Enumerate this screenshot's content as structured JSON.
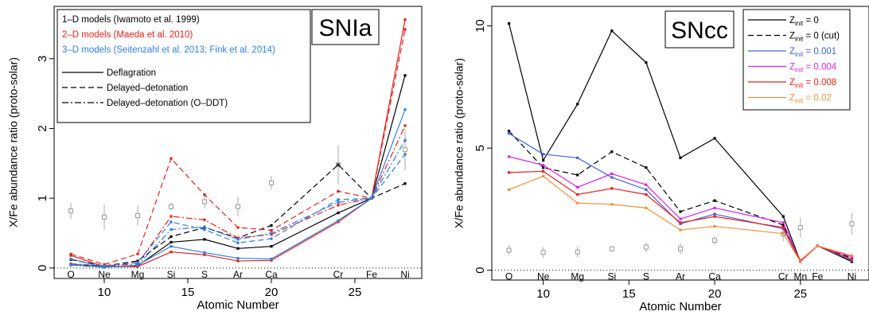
{
  "chart_data": [
    {
      "type": "line",
      "title": "SNIa",
      "xlabel": "Atomic Number",
      "ylabel": "X/Fe abundance ratio (proto-solar)",
      "xlim": [
        7,
        29
      ],
      "ylim": [
        -0.15,
        3.75
      ],
      "xticks": [
        10,
        15,
        20,
        25
      ],
      "yticks": [
        0,
        1,
        2,
        3
      ],
      "grid": false,
      "element_labels": [
        {
          "name": "O",
          "z": 8
        },
        {
          "name": "Ne",
          "z": 10
        },
        {
          "name": "Mg",
          "z": 12
        },
        {
          "name": "Si",
          "z": 14
        },
        {
          "name": "S",
          "z": 16
        },
        {
          "name": "Ar",
          "z": 18
        },
        {
          "name": "Ca",
          "z": 20
        },
        {
          "name": "Cr",
          "z": 24
        },
        {
          "name": "Fe",
          "z": 26
        },
        {
          "name": "Ni",
          "z": 28
        }
      ],
      "legend_placement": "top-left",
      "legend_groups": [
        {
          "label": "1–D models (Iwamoto et al. 1999)",
          "color": "#000000"
        },
        {
          "label": "2–D models (Maeda et al. 2010)",
          "color": "#e8201e"
        },
        {
          "label": "3–D models (Seitenzahl et al. 2013; Fink et al. 2014)",
          "color": "#2e7fe0"
        }
      ],
      "legend_styles": [
        {
          "label": "Deflagration",
          "dash": "solid"
        },
        {
          "label": "Delayed–detonation",
          "dash": "dashed"
        },
        {
          "label": "Delayed–detonation (O–DDT)",
          "dash": "dashdot"
        }
      ],
      "x": [
        8,
        10,
        12,
        14,
        16,
        18,
        20,
        24,
        26,
        28
      ],
      "series": [
        {
          "color": "#000000",
          "dash": "solid",
          "values": [
            0.05,
            0.02,
            0.03,
            0.37,
            0.41,
            0.28,
            0.31,
            0.79,
            1.0,
            2.76
          ]
        },
        {
          "color": "#000000",
          "dash": "dashed",
          "values": [
            0.12,
            0.03,
            0.1,
            0.45,
            0.58,
            0.43,
            0.61,
            1.48,
            1.0,
            1.21
          ]
        },
        {
          "color": "#e8201e",
          "dash": "solid",
          "values": [
            0.18,
            0.02,
            0.02,
            0.23,
            0.19,
            0.1,
            0.11,
            0.66,
            1.0,
            3.56
          ]
        },
        {
          "color": "#e8201e",
          "dash": "dashed",
          "values": [
            0.2,
            0.05,
            0.2,
            1.57,
            1.05,
            0.58,
            0.54,
            1.1,
            1.0,
            3.42
          ]
        },
        {
          "color": "#e8201e",
          "dash": "dashdot",
          "values": [
            0.06,
            0.03,
            0.06,
            0.74,
            0.69,
            0.43,
            0.48,
            0.9,
            1.0,
            2.04
          ]
        },
        {
          "color": "#2e7fe0",
          "dash": "solid",
          "values": [
            0.13,
            0.01,
            0.04,
            0.31,
            0.22,
            0.14,
            0.13,
            0.68,
            1.0,
            2.27
          ]
        },
        {
          "color": "#2e7fe0",
          "dash": "dashed",
          "values": [
            0.05,
            0.03,
            0.08,
            0.66,
            0.55,
            0.36,
            0.42,
            0.98,
            1.0,
            1.63
          ]
        },
        {
          "color": "#2e7fe0",
          "dash": "dashdot",
          "values": [
            0.04,
            0.01,
            0.04,
            0.55,
            0.59,
            0.41,
            0.5,
            0.94,
            1.0,
            1.83
          ]
        }
      ],
      "observations": [
        {
          "z": 8,
          "value": 0.82,
          "err": 0.12
        },
        {
          "z": 10,
          "value": 0.73,
          "err": 0.18
        },
        {
          "z": 12,
          "value": 0.75,
          "err": 0.14
        },
        {
          "z": 14,
          "value": 0.88,
          "err": 0.06
        },
        {
          "z": 16,
          "value": 0.95,
          "err": 0.1
        },
        {
          "z": 18,
          "value": 0.88,
          "err": 0.14
        },
        {
          "z": 20,
          "value": 1.22,
          "err": 0.1
        },
        {
          "z": 24,
          "value": 1.48,
          "err": 0.28
        },
        {
          "z": 28,
          "value": 1.7,
          "err": 0.3
        }
      ],
      "baseline": 0
    },
    {
      "type": "line",
      "title": "SNcc",
      "xlabel": "Atomic Number",
      "ylabel": "X/Fe abundance ratio (proto-solar)",
      "xlim": [
        7,
        29
      ],
      "ylim": [
        -0.4,
        10.8
      ],
      "xticks": [
        10,
        15,
        20,
        25
      ],
      "yticks": [
        0,
        5,
        10
      ],
      "grid": false,
      "element_labels": [
        {
          "name": "O",
          "z": 8
        },
        {
          "name": "Ne",
          "z": 10
        },
        {
          "name": "Mg",
          "z": 12
        },
        {
          "name": "Si",
          "z": 14
        },
        {
          "name": "S",
          "z": 16
        },
        {
          "name": "Ar",
          "z": 18
        },
        {
          "name": "Ca",
          "z": 20
        },
        {
          "name": "Cr",
          "z": 24
        },
        {
          "name": "Mn",
          "z": 25
        },
        {
          "name": "Fe",
          "z": 26
        },
        {
          "name": "Ni",
          "z": 28
        }
      ],
      "legend_placement": "top-right",
      "legend_entries": [
        {
          "prefix": "Z",
          "sub": "init",
          "suffix": " = 0",
          "color": "#000000",
          "dash": "solid"
        },
        {
          "prefix": "Z",
          "sub": "init",
          "suffix": " = 0 (cut)",
          "color": "#000000",
          "dash": "dashed"
        },
        {
          "prefix": "Z",
          "sub": "init",
          "suffix": " = 0.001",
          "color": "#3d63d6",
          "dash": "solid"
        },
        {
          "prefix": "Z",
          "sub": "init",
          "suffix": " = 0.004",
          "color": "#d826e0",
          "dash": "solid"
        },
        {
          "prefix": "Z",
          "sub": "init",
          "suffix": " = 0.008",
          "color": "#e8201e",
          "dash": "solid"
        },
        {
          "prefix": "Z",
          "sub": "init",
          "suffix": " = 0.02",
          "color": "#f09040",
          "dash": "solid"
        }
      ],
      "x": [
        8,
        10,
        12,
        14,
        16,
        18,
        20,
        24,
        25,
        26,
        28
      ],
      "series": [
        {
          "color": "#000000",
          "dash": "solid",
          "values": [
            10.1,
            4.5,
            6.8,
            9.8,
            8.5,
            4.6,
            5.4,
            2.2,
            0.35,
            1.0,
            0.35
          ]
        },
        {
          "color": "#000000",
          "dash": "dashed",
          "values": [
            5.7,
            4.2,
            3.9,
            4.85,
            4.2,
            2.4,
            2.85,
            1.85,
            0.35,
            1.0,
            0.5
          ]
        },
        {
          "color": "#3d63d6",
          "dash": "solid",
          "values": [
            5.6,
            4.75,
            4.6,
            3.8,
            3.3,
            1.9,
            2.3,
            1.7,
            0.35,
            1.0,
            0.4
          ]
        },
        {
          "color": "#d826e0",
          "dash": "solid",
          "values": [
            4.65,
            4.3,
            3.4,
            3.95,
            3.5,
            2.1,
            2.55,
            1.95,
            0.35,
            1.0,
            0.55
          ]
        },
        {
          "color": "#e8201e",
          "dash": "solid",
          "values": [
            4.0,
            4.05,
            3.1,
            3.35,
            3.1,
            1.95,
            2.2,
            1.75,
            0.4,
            1.0,
            0.45
          ]
        },
        {
          "color": "#f09040",
          "dash": "solid",
          "values": [
            3.3,
            3.85,
            2.75,
            2.7,
            2.55,
            1.65,
            1.8,
            1.5,
            0.35,
            1.0,
            0.6
          ]
        }
      ],
      "observations": [
        {
          "z": 8,
          "value": 0.82,
          "err": 0.22
        },
        {
          "z": 10,
          "value": 0.73,
          "err": 0.22
        },
        {
          "z": 12,
          "value": 0.75,
          "err": 0.22
        },
        {
          "z": 14,
          "value": 0.88,
          "err": 0.12
        },
        {
          "z": 16,
          "value": 0.95,
          "err": 0.2
        },
        {
          "z": 18,
          "value": 0.88,
          "err": 0.22
        },
        {
          "z": 20,
          "value": 1.22,
          "err": 0.18
        },
        {
          "z": 24,
          "value": 1.48,
          "err": 0.3
        },
        {
          "z": 25,
          "value": 1.75,
          "err": 0.4
        },
        {
          "z": 28,
          "value": 1.9,
          "err": 0.45
        }
      ],
      "baseline": 0
    }
  ]
}
